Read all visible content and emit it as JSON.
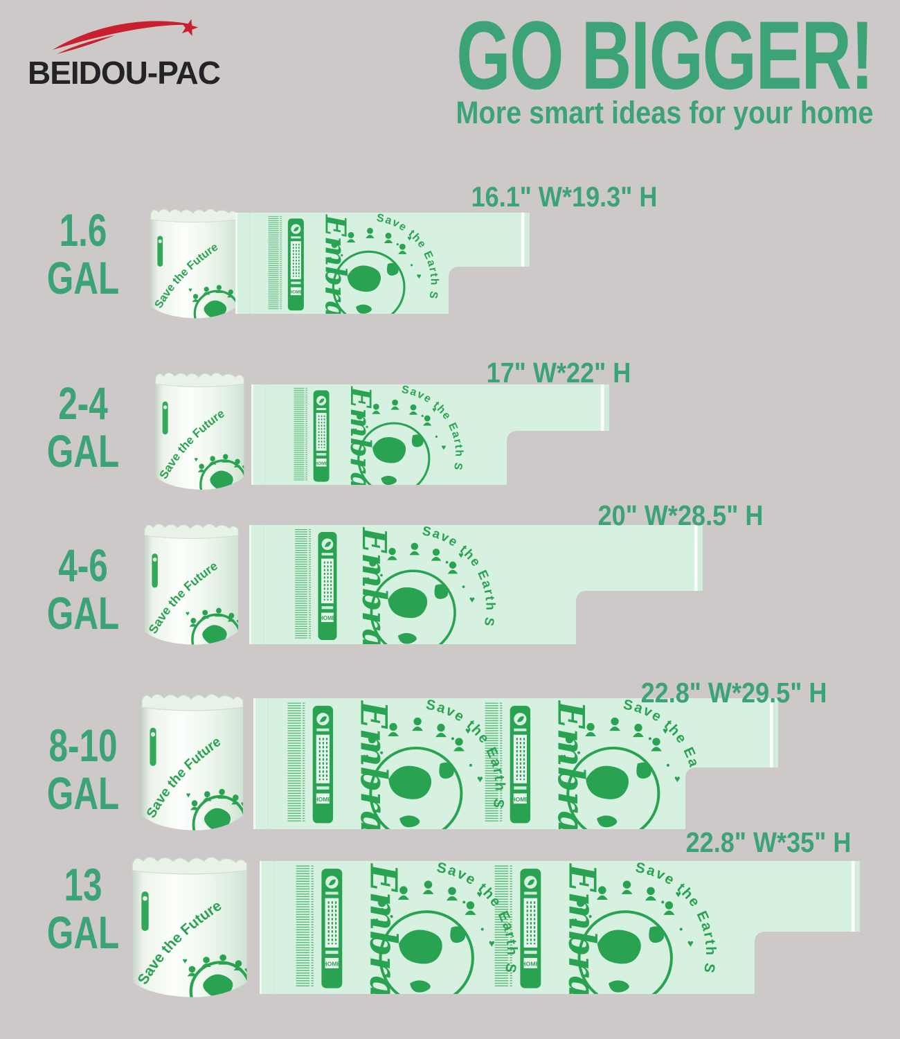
{
  "logo": {
    "brand": "BEIDOU-PAC"
  },
  "header": {
    "title": "GO BIGGER!",
    "subtitle": "More smart ideas for your home"
  },
  "bag_print": {
    "roll_text": "Save the Future",
    "script_text": "Embrace",
    "arc_text": "Save the Earth S",
    "badge_text": "HOME"
  },
  "colors": {
    "background": "#cdc9c8",
    "accent_green": "#3ca377",
    "print_green": "#29a351",
    "bag_mint": "#d7f1e1",
    "logo_red": "#c8202f",
    "logo_dark": "#232327"
  },
  "rows": [
    {
      "size": "1.6",
      "unit": "GAL",
      "dimensions": "16.1\" W*19.3\" H"
    },
    {
      "size": "2-4",
      "unit": "GAL",
      "dimensions": "17\" W*22\" H"
    },
    {
      "size": "4-6",
      "unit": "GAL",
      "dimensions": "20\" W*28.5\" H"
    },
    {
      "size": "8-10",
      "unit": "GAL",
      "dimensions": "22.8\" W*29.5\" H"
    },
    {
      "size": "13",
      "unit": "GAL",
      "dimensions": "22.8\" W*35\" H"
    }
  ]
}
